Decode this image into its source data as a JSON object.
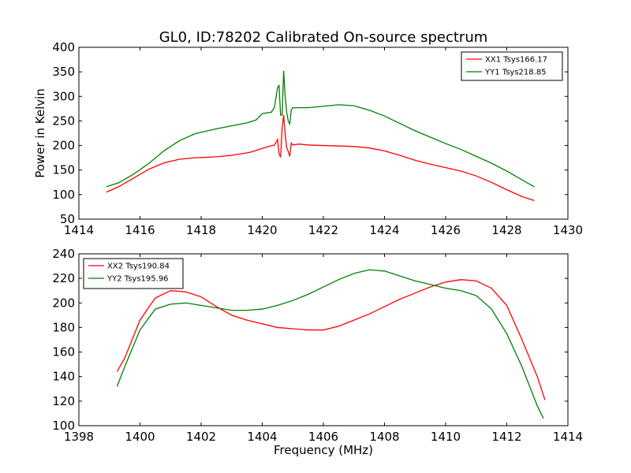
{
  "figure": {
    "title": "GL0, ID:78202 Calibrated On-source spectrum",
    "ylabel": "Power in Kelvin",
    "xlabel": "Frequency (MHz)"
  },
  "chart_data": [
    {
      "type": "line",
      "xlim": [
        1414,
        1430
      ],
      "ylim": [
        50,
        400
      ],
      "xticks": [
        1414,
        1416,
        1418,
        1420,
        1422,
        1424,
        1426,
        1428,
        1430
      ],
      "yticks": [
        50,
        100,
        150,
        200,
        250,
        300,
        350,
        400
      ],
      "legend_position": "top-right",
      "series": [
        {
          "name": "XX1 Tsys166.17",
          "color": "#ff0000",
          "points": [
            [
              1414.9,
              105
            ],
            [
              1415.3,
              116
            ],
            [
              1415.8,
              134
            ],
            [
              1416.3,
              152
            ],
            [
              1416.8,
              165
            ],
            [
              1417.3,
              172
            ],
            [
              1417.8,
              175
            ],
            [
              1418.5,
              177
            ],
            [
              1419.0,
              180
            ],
            [
              1419.6,
              186
            ],
            [
              1419.9,
              192
            ],
            [
              1420.2,
              198
            ],
            [
              1420.4,
              201
            ],
            [
              1420.5,
              212
            ],
            [
              1420.55,
              184
            ],
            [
              1420.6,
              176
            ],
            [
              1420.65,
              235
            ],
            [
              1420.7,
              262
            ],
            [
              1420.75,
              222
            ],
            [
              1420.8,
              196
            ],
            [
              1420.85,
              188
            ],
            [
              1420.9,
              178
            ],
            [
              1420.95,
              205
            ],
            [
              1421.0,
              201
            ],
            [
              1421.2,
              203
            ],
            [
              1421.5,
              201
            ],
            [
              1422.0,
              200
            ],
            [
              1423.0,
              198
            ],
            [
              1423.5,
              195
            ],
            [
              1424.0,
              189
            ],
            [
              1424.5,
              180
            ],
            [
              1425.0,
              170
            ],
            [
              1425.5,
              162
            ],
            [
              1426.0,
              155
            ],
            [
              1426.5,
              148
            ],
            [
              1427.0,
              138
            ],
            [
              1427.5,
              125
            ],
            [
              1428.0,
              110
            ],
            [
              1428.5,
              96
            ],
            [
              1428.9,
              88
            ]
          ]
        },
        {
          "name": "YY1 Tsys218.85",
          "color": "#008000",
          "points": [
            [
              1414.9,
              116
            ],
            [
              1415.3,
              124
            ],
            [
              1415.8,
              142
            ],
            [
              1416.3,
              164
            ],
            [
              1416.8,
              190
            ],
            [
              1417.3,
              210
            ],
            [
              1417.8,
              224
            ],
            [
              1418.5,
              234
            ],
            [
              1419.0,
              240
            ],
            [
              1419.5,
              246
            ],
            [
              1419.8,
              252
            ],
            [
              1420.0,
              265
            ],
            [
              1420.3,
              268
            ],
            [
              1420.4,
              278
            ],
            [
              1420.5,
              318
            ],
            [
              1420.55,
              322
            ],
            [
              1420.6,
              262
            ],
            [
              1420.65,
              262
            ],
            [
              1420.7,
              352
            ],
            [
              1420.75,
              300
            ],
            [
              1420.8,
              268
            ],
            [
              1420.85,
              250
            ],
            [
              1420.9,
              244
            ],
            [
              1420.95,
              272
            ],
            [
              1421.0,
              277
            ],
            [
              1421.5,
              277
            ],
            [
              1422.0,
              280
            ],
            [
              1422.5,
              283
            ],
            [
              1423.0,
              281
            ],
            [
              1423.5,
              272
            ],
            [
              1424.0,
              260
            ],
            [
              1424.5,
              245
            ],
            [
              1425.0,
              230
            ],
            [
              1425.5,
              217
            ],
            [
              1426.0,
              204
            ],
            [
              1426.5,
              192
            ],
            [
              1427.0,
              178
            ],
            [
              1427.5,
              164
            ],
            [
              1428.0,
              148
            ],
            [
              1428.5,
              130
            ],
            [
              1428.9,
              116
            ]
          ]
        }
      ]
    },
    {
      "type": "line",
      "xlim": [
        1398,
        1414
      ],
      "ylim": [
        100,
        240
      ],
      "xticks": [
        1398,
        1400,
        1402,
        1404,
        1406,
        1408,
        1410,
        1412,
        1414
      ],
      "yticks": [
        100,
        120,
        140,
        160,
        180,
        200,
        220,
        240
      ],
      "legend_position": "top-left",
      "series": [
        {
          "name": "XX2 Tsys190.84",
          "color": "#ff0000",
          "points": [
            [
              1399.25,
              144
            ],
            [
              1399.5,
              155
            ],
            [
              1400.0,
              186
            ],
            [
              1400.5,
              204
            ],
            [
              1401.0,
              210
            ],
            [
              1401.5,
              209
            ],
            [
              1402.0,
              205
            ],
            [
              1402.5,
              197
            ],
            [
              1403.0,
              190
            ],
            [
              1403.5,
              186
            ],
            [
              1404.0,
              183
            ],
            [
              1404.5,
              180
            ],
            [
              1405.0,
              179
            ],
            [
              1405.5,
              178
            ],
            [
              1406.0,
              178
            ],
            [
              1406.5,
              181
            ],
            [
              1407.0,
              186
            ],
            [
              1407.5,
              191
            ],
            [
              1408.0,
              197
            ],
            [
              1408.5,
              203
            ],
            [
              1409.0,
              208
            ],
            [
              1409.5,
              213
            ],
            [
              1410.0,
              217
            ],
            [
              1410.5,
              219
            ],
            [
              1411.0,
              218
            ],
            [
              1411.5,
              212
            ],
            [
              1412.0,
              198
            ],
            [
              1412.5,
              170
            ],
            [
              1413.0,
              140
            ],
            [
              1413.25,
              121
            ]
          ]
        },
        {
          "name": "YY2 Tsys195.96",
          "color": "#008000",
          "points": [
            [
              1399.25,
              132
            ],
            [
              1399.5,
              148
            ],
            [
              1400.0,
              178
            ],
            [
              1400.5,
              195
            ],
            [
              1401.0,
              199
            ],
            [
              1401.5,
              200
            ],
            [
              1402.0,
              198
            ],
            [
              1402.5,
              196
            ],
            [
              1403.0,
              194
            ],
            [
              1403.5,
              194
            ],
            [
              1404.0,
              195
            ],
            [
              1404.5,
              198
            ],
            [
              1405.0,
              202
            ],
            [
              1405.5,
              207
            ],
            [
              1406.0,
              213
            ],
            [
              1406.5,
              219
            ],
            [
              1407.0,
              224
            ],
            [
              1407.5,
              227
            ],
            [
              1408.0,
              226
            ],
            [
              1408.5,
              222
            ],
            [
              1409.0,
              218
            ],
            [
              1409.5,
              215
            ],
            [
              1410.0,
              212
            ],
            [
              1410.5,
              210
            ],
            [
              1411.0,
              206
            ],
            [
              1411.5,
              195
            ],
            [
              1412.0,
              175
            ],
            [
              1412.5,
              148
            ],
            [
              1413.0,
              116
            ],
            [
              1413.2,
              106
            ]
          ]
        }
      ]
    }
  ]
}
